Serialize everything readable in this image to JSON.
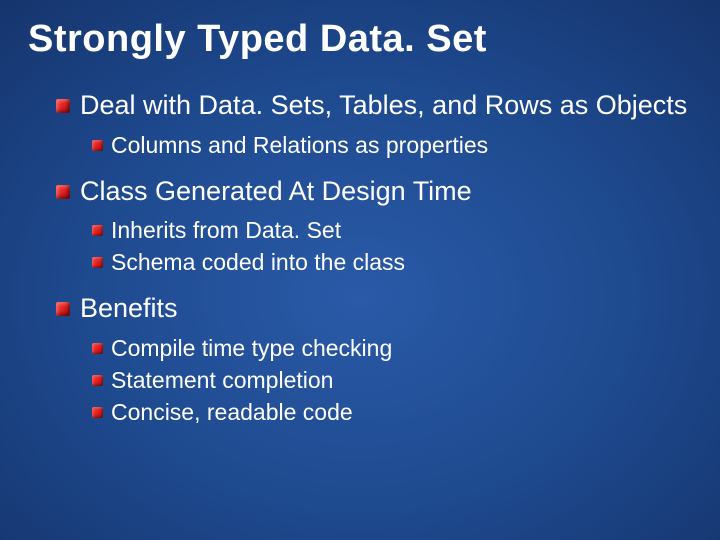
{
  "title": "Strongly Typed Data. Set",
  "sections": [
    {
      "text": "Deal with Data. Sets, Tables, and Rows as Objects",
      "children": [
        "Columns and Relations as properties"
      ]
    },
    {
      "text": "Class Generated At Design Time",
      "children": [
        "Inherits from Data. Set",
        "Schema coded into the class"
      ]
    },
    {
      "text": "Benefits",
      "children": [
        "Compile time type checking",
        "Statement completion",
        "Concise, readable code"
      ]
    }
  ],
  "colors": {
    "bullet_gradient_start": "#ff4a4a",
    "bullet_gradient_mid": "#d61a1a",
    "bullet_gradient_end": "#8e0f0f",
    "bg_center": "#2a5aa8",
    "bg_edge": "#081a3a",
    "text": "#ffffff"
  },
  "fonts": {
    "title_size_pt": 29,
    "level1_size_pt": 20,
    "level2_size_pt": 17,
    "family": "Arial"
  }
}
